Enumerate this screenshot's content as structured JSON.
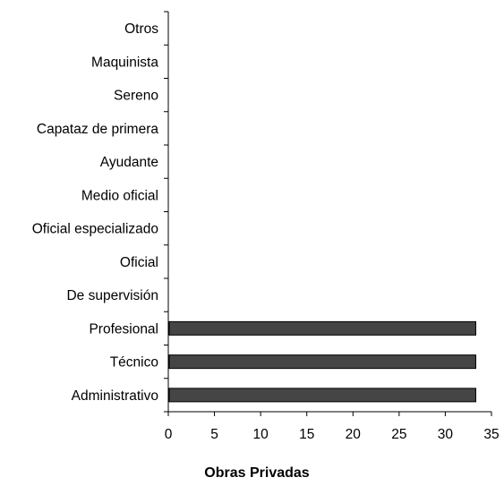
{
  "chart_data": {
    "type": "bar",
    "orientation": "horizontal",
    "title": "",
    "xlabel": "Obras Privadas",
    "ylabel": "",
    "categories": [
      "Administrativo",
      "Técnico",
      "Profesional",
      "De supervisión",
      "Oficial",
      "Oficial especializado",
      "Medio oficial",
      "Ayudante",
      "Capataz de primera",
      "Sereno",
      "Maquinista",
      "Otros"
    ],
    "values": [
      33.3,
      33.3,
      33.3,
      0,
      0,
      0,
      0,
      0,
      0,
      0,
      0,
      0
    ],
    "x_ticks": [
      "0",
      "5",
      "10",
      "15",
      "20",
      "25",
      "30",
      "35"
    ],
    "xlim": [
      0,
      35
    ],
    "grid": false,
    "legend": "none",
    "bar_color": "#454545",
    "bar_edge_color": "#000000"
  }
}
